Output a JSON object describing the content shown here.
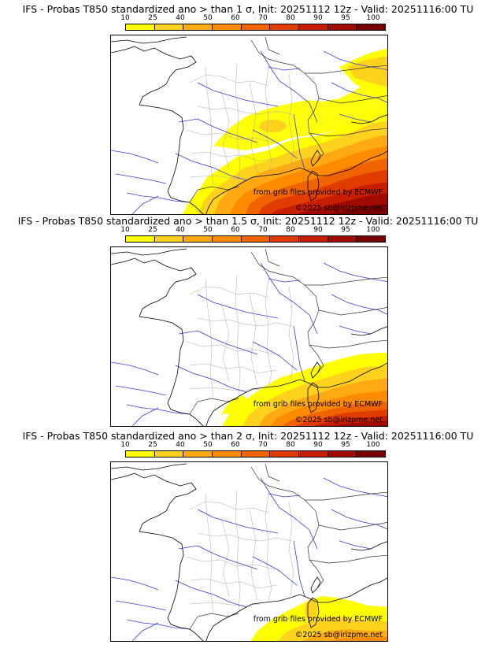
{
  "colorbar": {
    "ticks": [
      "10",
      "25",
      "40",
      "50",
      "60",
      "70",
      "80",
      "90",
      "95",
      "100"
    ],
    "colors": [
      "#ffff00",
      "#ffd21e",
      "#ffaa14",
      "#ff8c00",
      "#f06400",
      "#e03c00",
      "#c81e00",
      "#a00a00",
      "#780000"
    ]
  },
  "panels": [
    {
      "title": "IFS - Probas T850  standardized ano > than 1 σ, Init: 20251112 12z - Valid: 20251116:00 TU",
      "source": "from grib files provided by ECMWF",
      "copyright": "©2025 sb@irizpme.net"
    },
    {
      "title": "IFS - Probas T850  standardized ano > than 1.5 σ, Init: 20251112 12z - Valid: 20251116:00 TU",
      "source": "from grib files provided by ECMWF",
      "copyright": "©2025 sb@irizpme.net"
    },
    {
      "title": "IFS - Probas T850  standardized ano > than 2 σ, Init: 20251112 12z - Valid: 20251116:00 TU",
      "source": "from grib files provided by ECMWF",
      "copyright": "©2025 sb@irizpme.net"
    }
  ]
}
